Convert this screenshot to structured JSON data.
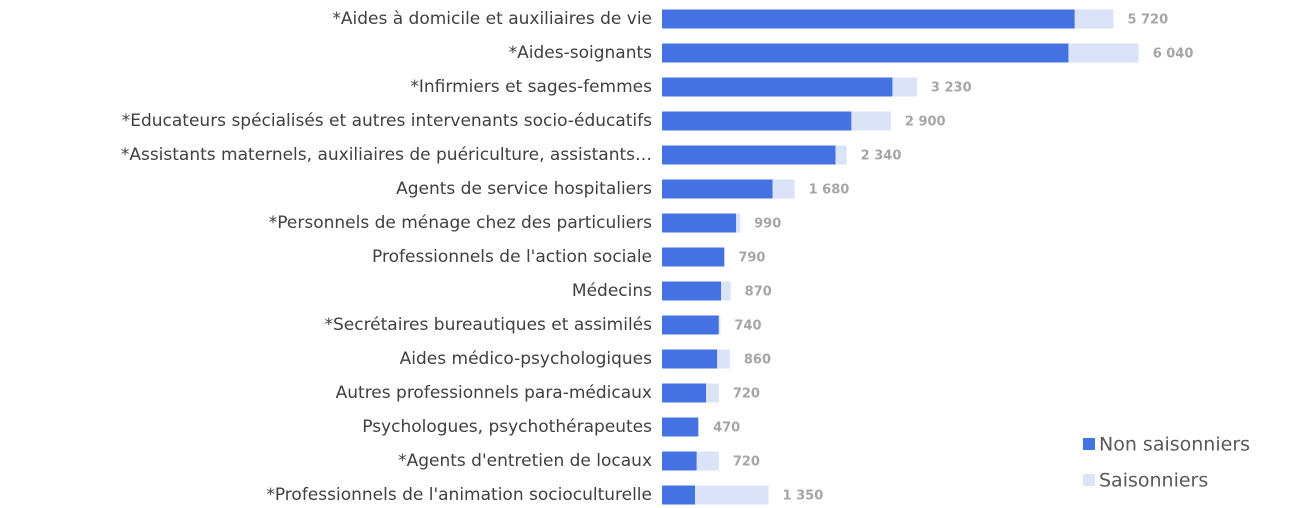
{
  "chart_data": {
    "type": "stacked_barh",
    "categories": [
      "*Aides à domicile et auxiliaires de vie",
      "*Aides-soignants",
      "*Infirmiers et sages-femmes",
      "*Educateurs spécialisés et autres intervenants socio-éducatifs",
      "*Assistants maternels, auxiliaires de puériculture, assistants…",
      "Agents de service hospitaliers",
      "*Personnels de ménage chez des particuliers",
      "Professionnels de l'action sociale",
      "Médecins",
      "*Secrétaires bureautiques et assimilés",
      "Aides médico-psychologiques",
      "Autres professionnels para-médicaux",
      "Psychologues, psychothérapeutes",
      "*Agents d'entretien de locaux",
      "*Professionnels de l'animation socioculturelle"
    ],
    "series": [
      {
        "name": "Non saisonniers",
        "color": "#4472e0",
        "values": [
          5230,
          5150,
          2920,
          2400,
          2200,
          1400,
          940,
          790,
          750,
          720,
          700,
          560,
          460,
          440,
          420
        ]
      },
      {
        "name": "Saisonniers",
        "color": "#dae3f8",
        "values": [
          490,
          890,
          310,
          500,
          140,
          280,
          50,
          0,
          120,
          20,
          160,
          160,
          10,
          280,
          930
        ]
      }
    ],
    "total_labels": [
      "5 720",
      "6 040",
      "3 230",
      "2 900",
      "2 340",
      "1 680",
      "990",
      "790",
      "870",
      "740",
      "860",
      "720",
      "470",
      "720",
      "1 350"
    ],
    "xlim": [
      0,
      6500
    ],
    "legend": "lower right"
  }
}
